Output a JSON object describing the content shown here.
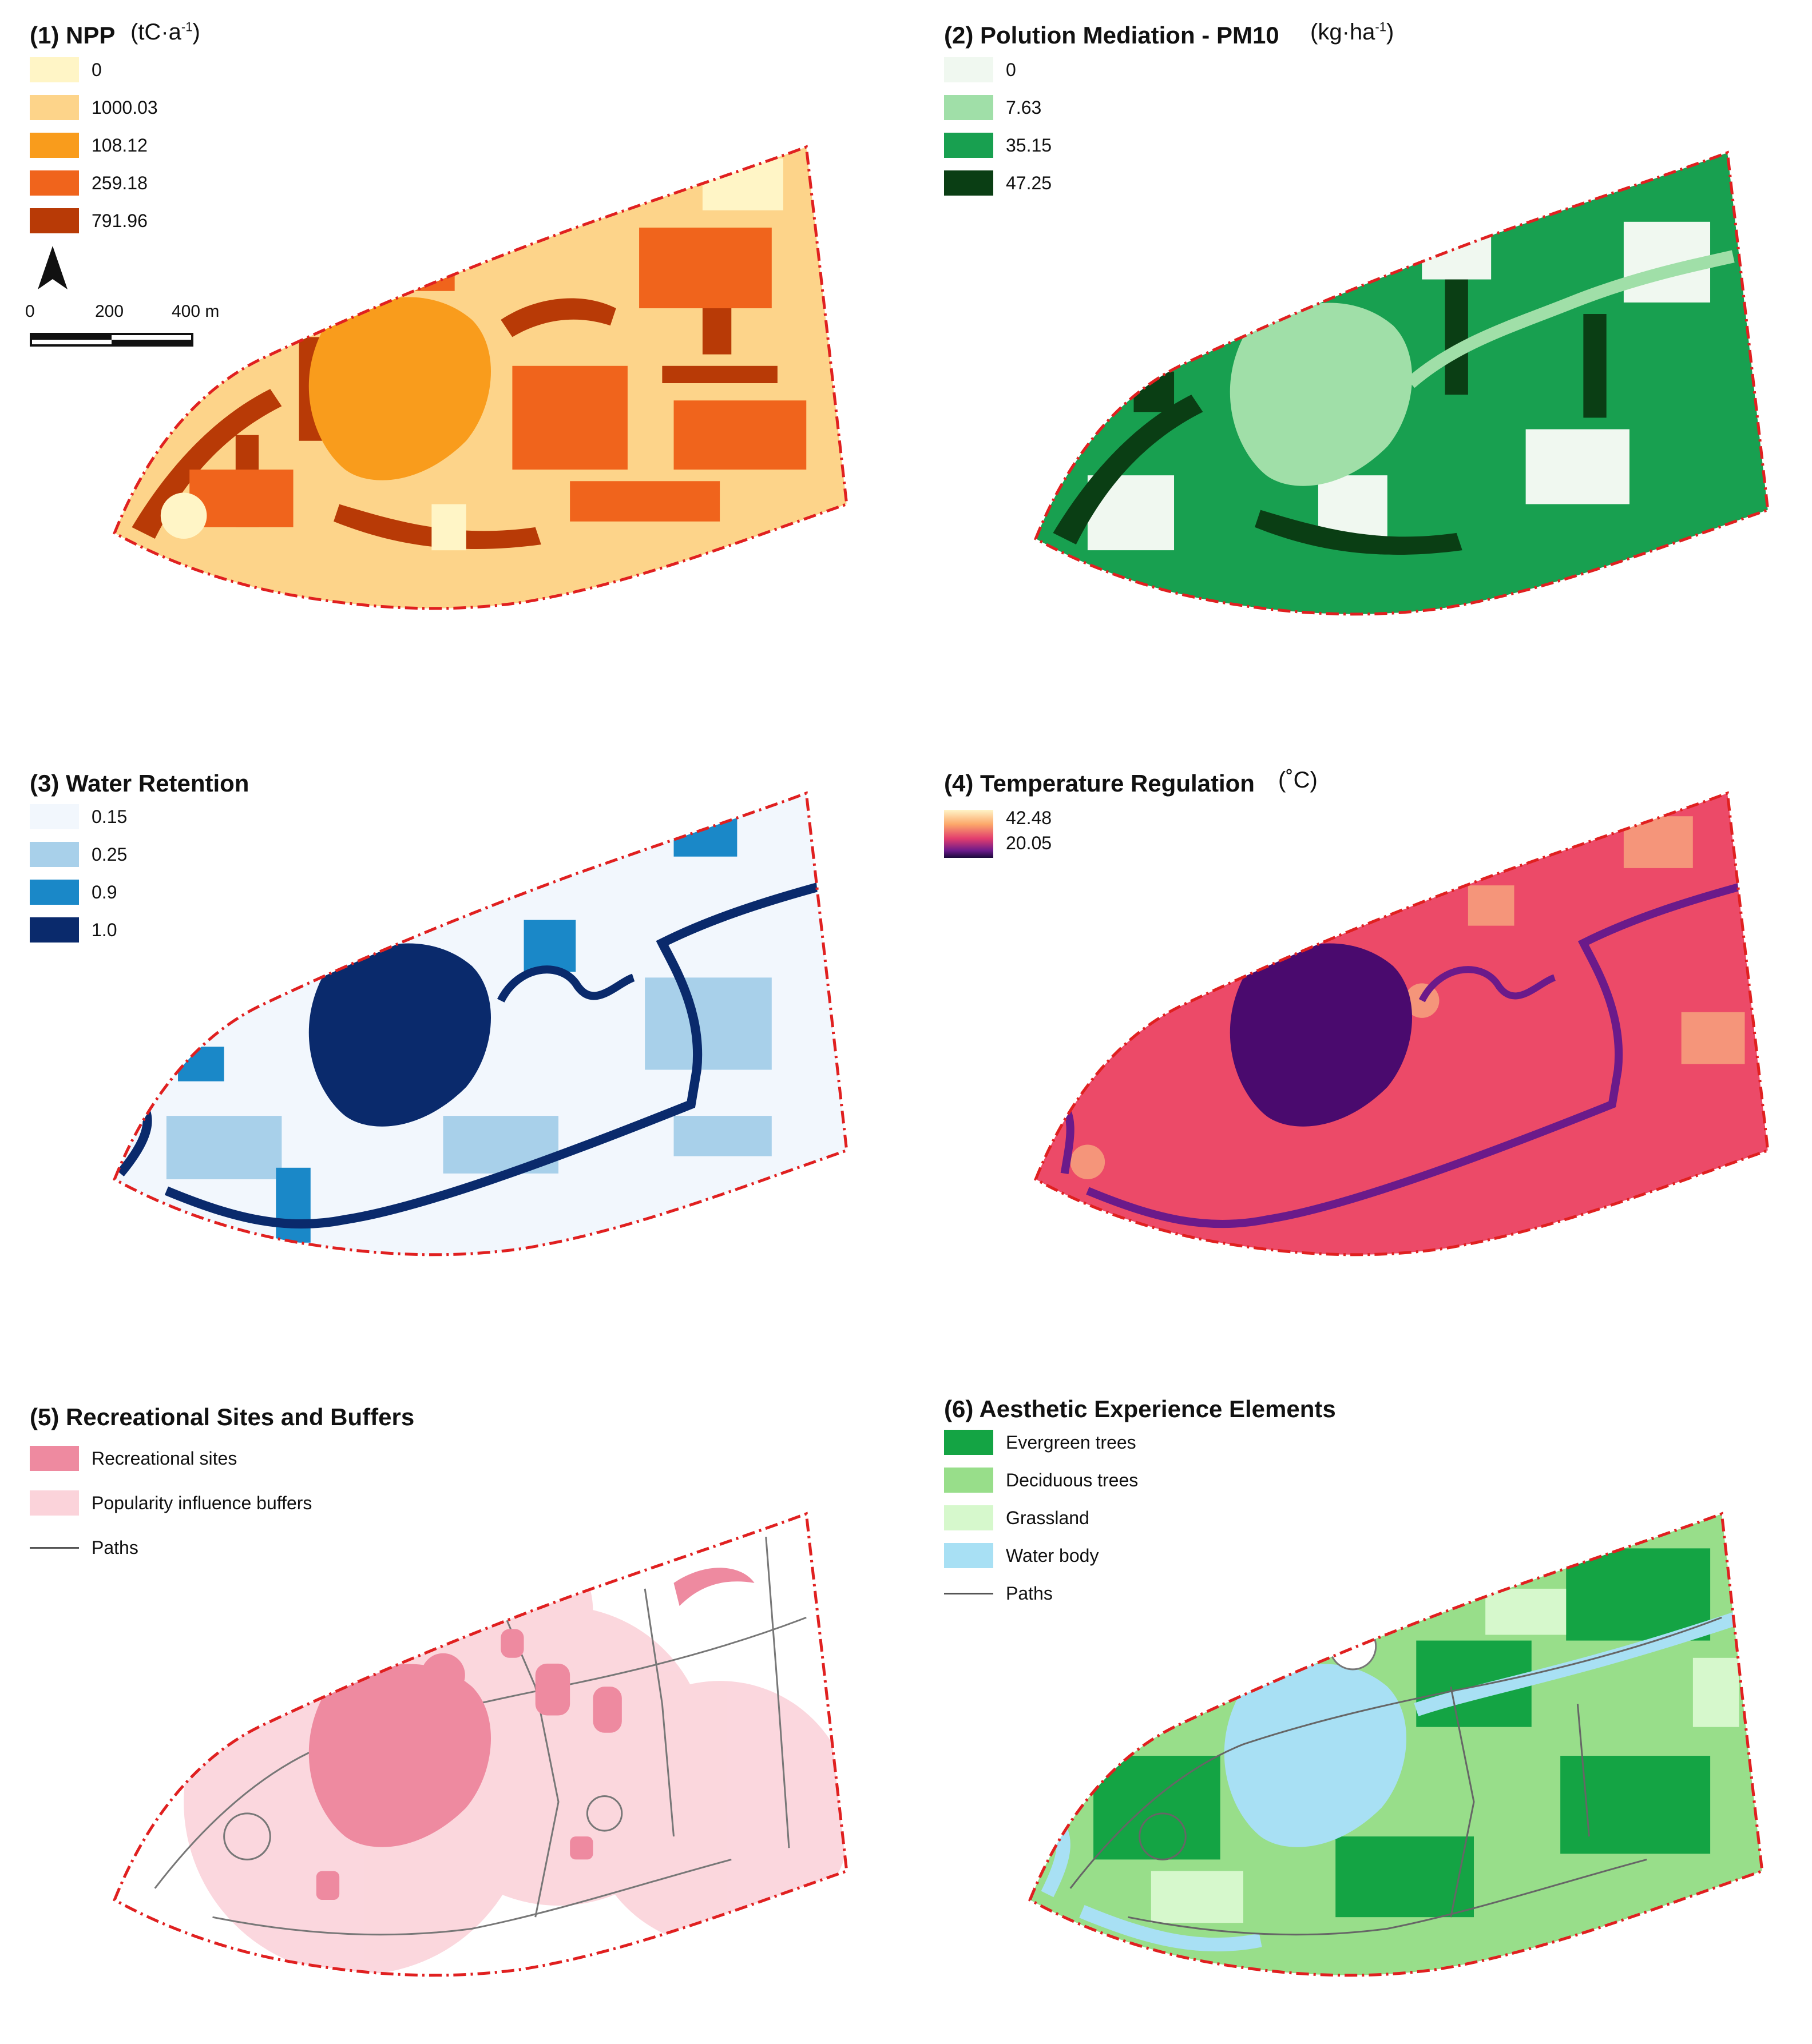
{
  "panels": {
    "p1": {
      "title": "(1) NPP",
      "unit": "(tC·a",
      "unit_sup": "-1",
      "unit_close": ")",
      "legend": [
        {
          "label": "0",
          "color": "#fff5c6"
        },
        {
          "label": "1000.03",
          "color": "#fdd48a"
        },
        {
          "label": "108.12",
          "color": "#f99c1c"
        },
        {
          "label": "259.18",
          "color": "#f0641c"
        },
        {
          "label": "791.96",
          "color": "#b83a06"
        }
      ],
      "scale": {
        "t0": "0",
        "t1": "200",
        "t2": "400 m"
      }
    },
    "p2": {
      "title": "(2) Polution Mediation - PM10",
      "unit": "(kg·ha",
      "unit_sup": "-1",
      "unit_close": ")",
      "legend": [
        {
          "label": "0",
          "color": "#f0f8f0"
        },
        {
          "label": "7.63",
          "color": "#a0dfa8"
        },
        {
          "label": "35.15",
          "color": "#18a050"
        },
        {
          "label": "47.25",
          "color": "#0a3e14"
        }
      ]
    },
    "p3": {
      "title": "(3) Water Retention",
      "legend": [
        {
          "label": "0.15",
          "color": "#f2f7fd"
        },
        {
          "label": "0.25",
          "color": "#a8d0ea"
        },
        {
          "label": "0.9",
          "color": "#1a88c8"
        },
        {
          "label": "1.0",
          "color": "#0a2a6c"
        }
      ]
    },
    "p4": {
      "title": "(4) Temperature Regulation",
      "unit": "(˚C)",
      "gradient": {
        "max": "42.48",
        "min": "20.05"
      }
    },
    "p5": {
      "title": "(5) Recreational Sites and Buffers",
      "legend": [
        {
          "label": "Recreational sites",
          "color": "#ee8aa0"
        },
        {
          "label": "Popularity influence buffers",
          "color": "#fbd3da"
        },
        {
          "label": "Paths",
          "color": "#666666",
          "kind": "line"
        }
      ]
    },
    "p6": {
      "title": "(6) Aesthetic Experience Elements",
      "legend": [
        {
          "label": "Evergreen trees",
          "color": "#14a444"
        },
        {
          "label": "Deciduous trees",
          "color": "#98de8a"
        },
        {
          "label": "Grassland",
          "color": "#d6f8cc"
        },
        {
          "label": "Water body",
          "color": "#a8e0f4"
        },
        {
          "label": "Paths",
          "color": "#555555",
          "kind": "line"
        }
      ]
    }
  },
  "colors": {
    "boundary": "#e02020",
    "npp_base": "#fdd48a",
    "npp_lake": "#f99c1c",
    "pm_base": "#18a050",
    "pm_lake": "#a0dfa8",
    "wr_base": "#f2f7fd",
    "wr_lake": "#0a2a6c",
    "tr_base": "#ec4a68",
    "tr_lake": "#4a0a6e",
    "rs_buffer": "#fbd3da",
    "rs_site": "#ee8aa0",
    "ae_base": "#98de8a",
    "ae_lake": "#a8e0f4"
  }
}
